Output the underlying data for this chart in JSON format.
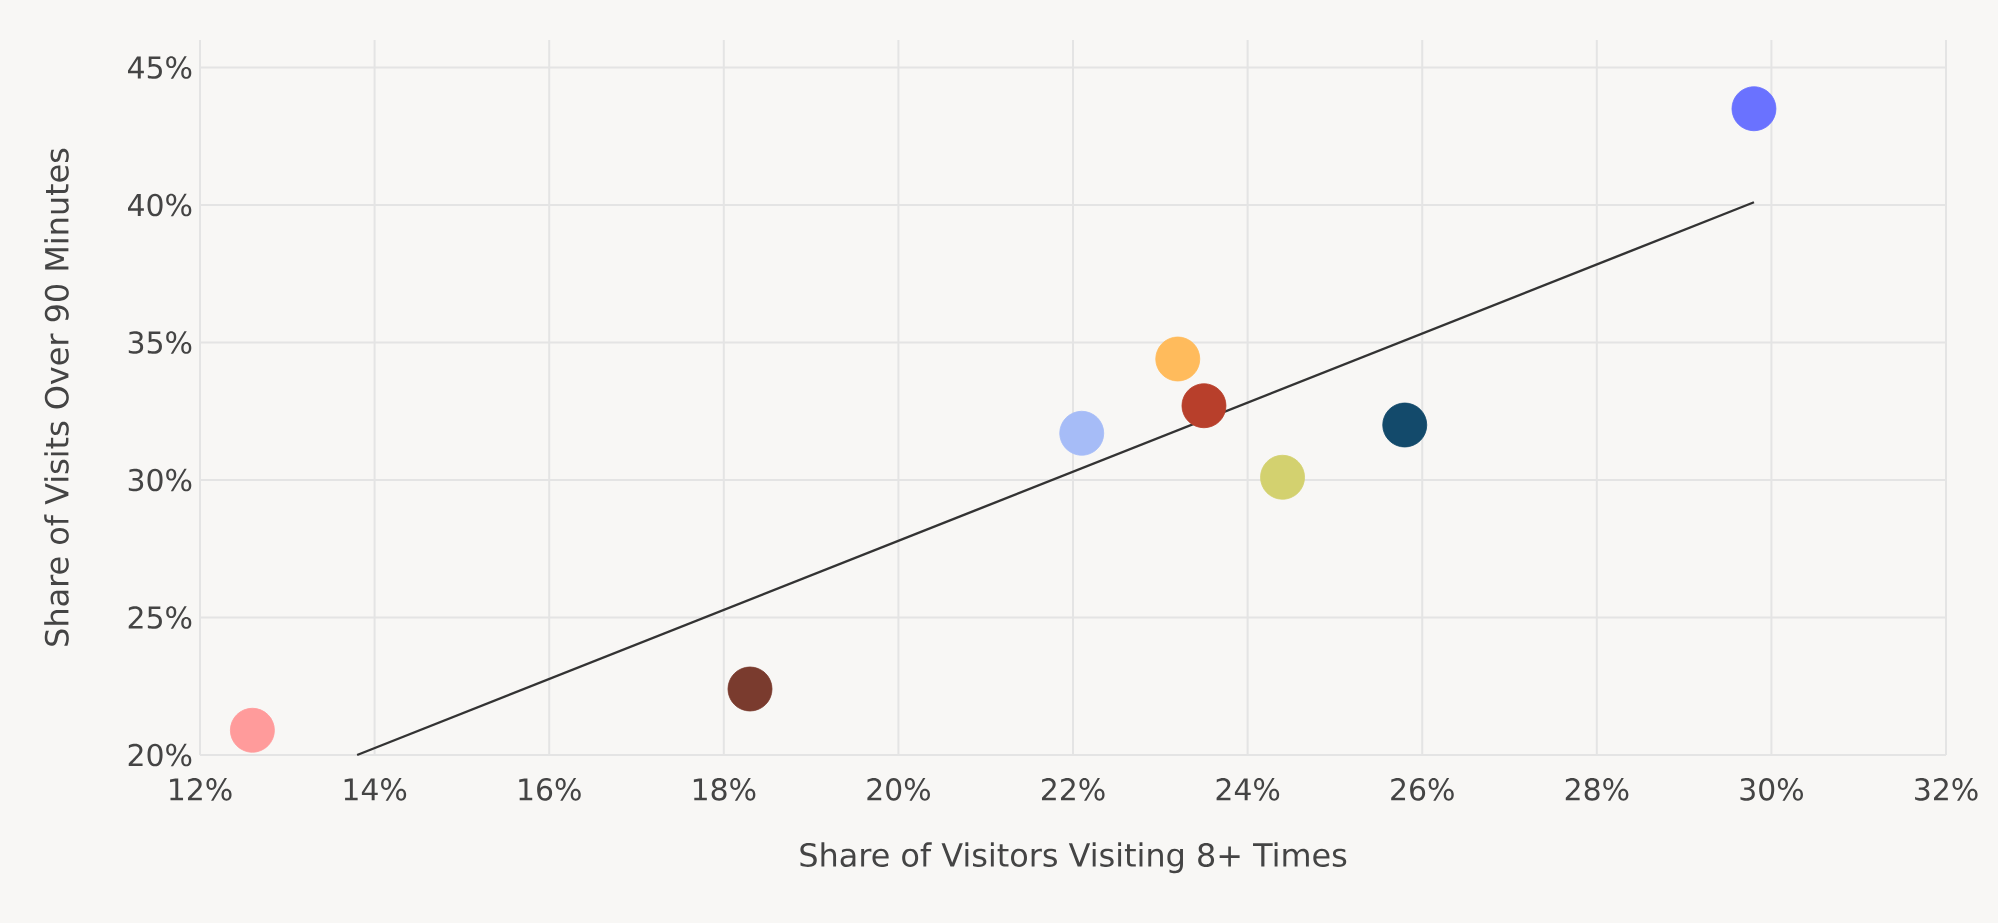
{
  "chart_data": {
    "type": "scatter",
    "xlabel": "Share of Visitors Visiting 8+ Times",
    "ylabel": "Share of Visits Over 90 Minutes",
    "grid": true,
    "marker": "circle",
    "xlim": [
      12,
      32
    ],
    "ylim": [
      20,
      46
    ],
    "xticks": [
      {
        "value": 12,
        "label": "12%"
      },
      {
        "value": 14,
        "label": "14%"
      },
      {
        "value": 16,
        "label": "16%"
      },
      {
        "value": 18,
        "label": "18%"
      },
      {
        "value": 20,
        "label": "20%"
      },
      {
        "value": 22,
        "label": "22%"
      },
      {
        "value": 24,
        "label": "24%"
      },
      {
        "value": 26,
        "label": "26%"
      },
      {
        "value": 28,
        "label": "28%"
      },
      {
        "value": 30,
        "label": "30%"
      },
      {
        "value": 32,
        "label": "32%"
      }
    ],
    "yticks": [
      {
        "value": 20,
        "label": "20%"
      },
      {
        "value": 25,
        "label": "25%"
      },
      {
        "value": 30,
        "label": "30%"
      },
      {
        "value": 35,
        "label": "35%"
      },
      {
        "value": 40,
        "label": "40%"
      },
      {
        "value": 45,
        "label": "45%"
      }
    ],
    "series": [
      {
        "type": "scatter",
        "x": [
          12.6,
          18.3,
          22.1,
          23.2,
          23.5,
          24.4,
          25.8,
          29.8
        ],
        "values": [
          20.9,
          22.4,
          31.7,
          34.4,
          32.7,
          30.1,
          32.0,
          43.5
        ],
        "colors": [
          "#ff9b9b",
          "#7a3b2e",
          "#a6bcf7",
          "#ffbb5c",
          "#b83f2b",
          "#d3d16f",
          "#134a6b",
          "#6a72ff"
        ]
      },
      {
        "type": "line",
        "x": [
          13.8,
          29.8
        ],
        "values": [
          20.0,
          40.1
        ],
        "color": "#333333",
        "marker": "none",
        "line_style": "solid"
      }
    ]
  }
}
